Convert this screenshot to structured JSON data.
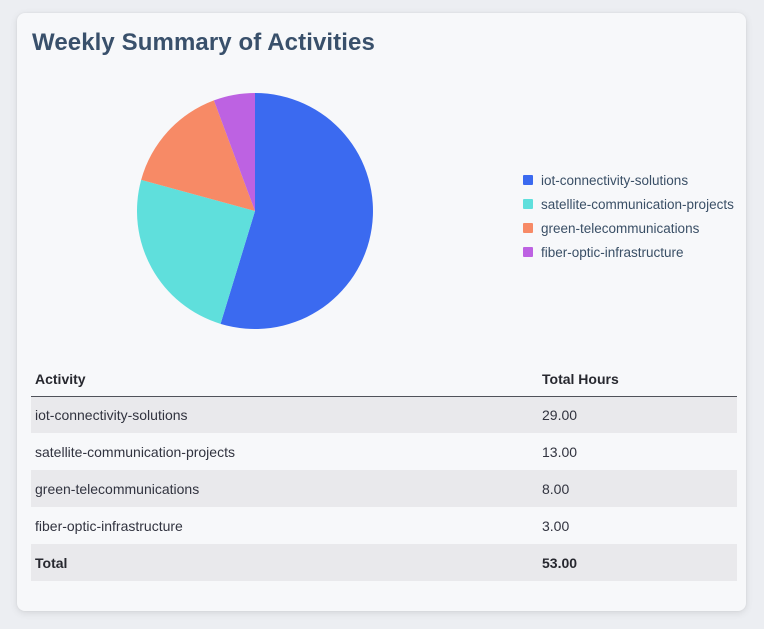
{
  "card": {
    "title": "Weekly Summary of Activities"
  },
  "chart_data": {
    "type": "pie",
    "title": "Weekly Summary of Activities",
    "labels": [
      "iot-connectivity-solutions",
      "satellite-communication-projects",
      "green-telecommunications",
      "fiber-optic-infrastructure"
    ],
    "values": [
      29,
      13,
      8,
      3
    ],
    "total": 53,
    "colors": [
      "#3b6af0",
      "#5fdfdc",
      "#f78a66",
      "#bd62e2"
    ],
    "start_angle": "top",
    "direction": "clockwise",
    "legend_position": "right"
  },
  "table": {
    "columns": [
      "Activity",
      "Total Hours"
    ],
    "rows": [
      {
        "activity": "iot-connectivity-solutions",
        "hours": "29.00"
      },
      {
        "activity": "satellite-communication-projects",
        "hours": "13.00"
      },
      {
        "activity": "green-telecommunications",
        "hours": "8.00"
      },
      {
        "activity": "fiber-optic-infrastructure",
        "hours": "3.00"
      }
    ],
    "total_row": {
      "activity": "Total",
      "hours": "53.00"
    }
  },
  "colors": {
    "page_bg": "#eceef2",
    "card_bg": "#f7f8fa",
    "title_text": "#39506b",
    "legend_text": "#3a4f66",
    "table_text": "#31333f",
    "row_alt_bg": "#e9e9ec",
    "header_border": "#50525a"
  }
}
